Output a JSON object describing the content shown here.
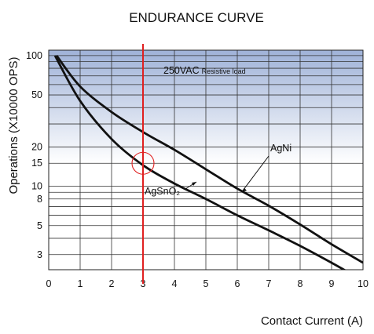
{
  "chart_data": {
    "type": "line",
    "title": "ENDURANCE CURVE",
    "xlabel": "Contact Current (A)",
    "ylabel": "Operations (X10000 OPS)",
    "y_scale": "log",
    "xlim": [
      0,
      10
    ],
    "ylim": [
      2.3,
      110
    ],
    "x_ticks": [
      0,
      1,
      2,
      3,
      4,
      5,
      6,
      7,
      8,
      9,
      10
    ],
    "y_ticks": [
      3,
      5,
      8,
      10,
      15,
      20,
      50,
      100
    ],
    "grid": true,
    "band_label_main": "250VAC",
    "band_label_small": "Resistive load",
    "marker_line_x": 3,
    "marker_circle": {
      "x": 3,
      "y": 15
    },
    "band_colors": {
      "top": "#9fb2d8",
      "bottom": "#ffffff"
    },
    "marker_color": "#e02020",
    "series": [
      {
        "name": "AgNi",
        "x": [
          0.25,
          1,
          2,
          3,
          4,
          5,
          6,
          7,
          8,
          9,
          10
        ],
        "y": [
          100,
          58,
          37,
          26,
          19,
          13.5,
          9.6,
          7.1,
          5.1,
          3.6,
          2.6
        ]
      },
      {
        "name": "AgSnO₂",
        "x": [
          0.2,
          1,
          2,
          3,
          4,
          5,
          6,
          7,
          8,
          9,
          10
        ],
        "y": [
          100,
          45,
          23,
          14.5,
          10.5,
          8,
          6,
          4.6,
          3.5,
          2.6,
          1.9
        ]
      }
    ]
  }
}
